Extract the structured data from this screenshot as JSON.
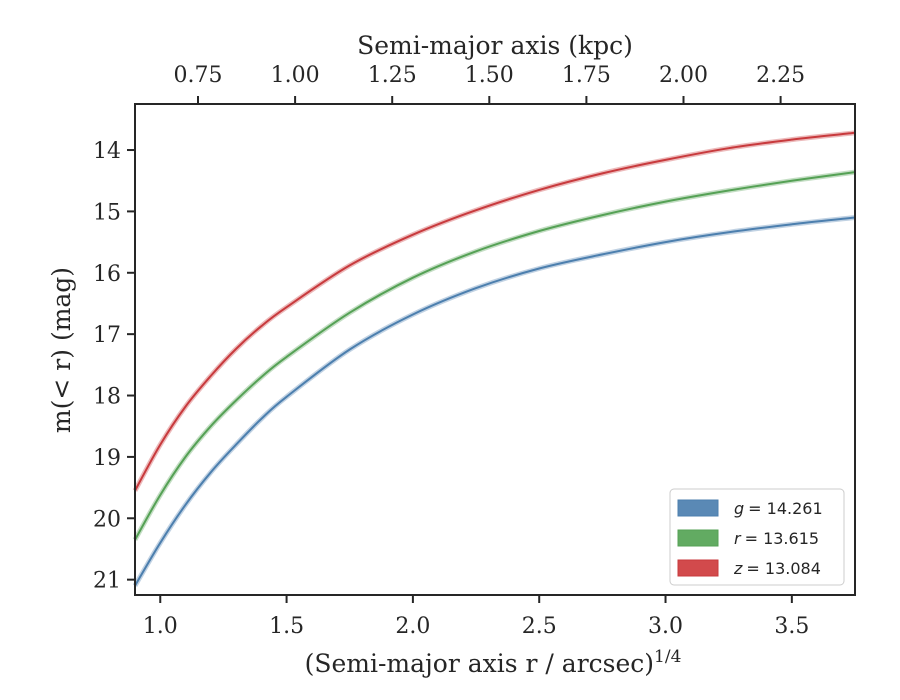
{
  "chart_data": {
    "type": "line",
    "xlabel": "(Semi-major axis r / arcsec)",
    "xlabel_sup": "1/4",
    "ylabel": "m(< r) (mag)",
    "top_xlabel": "Semi-major axis (kpc)",
    "xlim": [
      0.9,
      3.75
    ],
    "ylim": [
      21.25,
      13.25
    ],
    "y_inverted": true,
    "x_ticks": [
      "1.0",
      "1.5",
      "2.0",
      "2.5",
      "3.0",
      "3.5"
    ],
    "y_ticks": [
      "14",
      "15",
      "16",
      "17",
      "18",
      "19",
      "20",
      "21"
    ],
    "top_x_ticks": [
      "0.75",
      "1.00",
      "1.25",
      "1.50",
      "1.75",
      "2.00",
      "2.25"
    ],
    "legend_position": "lower-right",
    "series": [
      {
        "name": "g = 14.261",
        "legend_var": "g",
        "legend_value": "= 14.261",
        "color": "#4c7fae",
        "x": [
          0.9,
          1.0,
          1.1,
          1.2,
          1.3,
          1.4,
          1.5,
          1.75,
          2.0,
          2.25,
          2.5,
          2.75,
          3.0,
          3.25,
          3.5,
          3.75
        ],
        "y": [
          21.1,
          20.4,
          19.78,
          19.25,
          18.8,
          18.38,
          18.02,
          17.25,
          16.68,
          16.25,
          15.93,
          15.7,
          15.5,
          15.34,
          15.21,
          15.1
        ]
      },
      {
        "name": "r = 13.615",
        "legend_var": "r",
        "legend_value": "= 13.615",
        "color": "#55a155",
        "x": [
          0.9,
          1.0,
          1.1,
          1.2,
          1.3,
          1.4,
          1.5,
          1.75,
          2.0,
          2.25,
          2.5,
          2.75,
          3.0,
          3.25,
          3.5,
          3.75
        ],
        "y": [
          20.35,
          19.62,
          19.0,
          18.5,
          18.08,
          17.7,
          17.37,
          16.65,
          16.08,
          15.65,
          15.32,
          15.06,
          14.84,
          14.66,
          14.5,
          14.36
        ]
      },
      {
        "name": "z = 13.084",
        "legend_var": "z",
        "legend_value": "= 13.084",
        "color": "#c83a3d",
        "x": [
          0.9,
          1.0,
          1.1,
          1.2,
          1.3,
          1.4,
          1.5,
          1.75,
          2.0,
          2.25,
          2.5,
          2.75,
          3.0,
          3.25,
          3.5,
          3.75
        ],
        "y": [
          19.55,
          18.8,
          18.18,
          17.68,
          17.24,
          16.87,
          16.56,
          15.88,
          15.38,
          14.98,
          14.65,
          14.38,
          14.16,
          13.97,
          13.83,
          13.72
        ]
      }
    ]
  }
}
